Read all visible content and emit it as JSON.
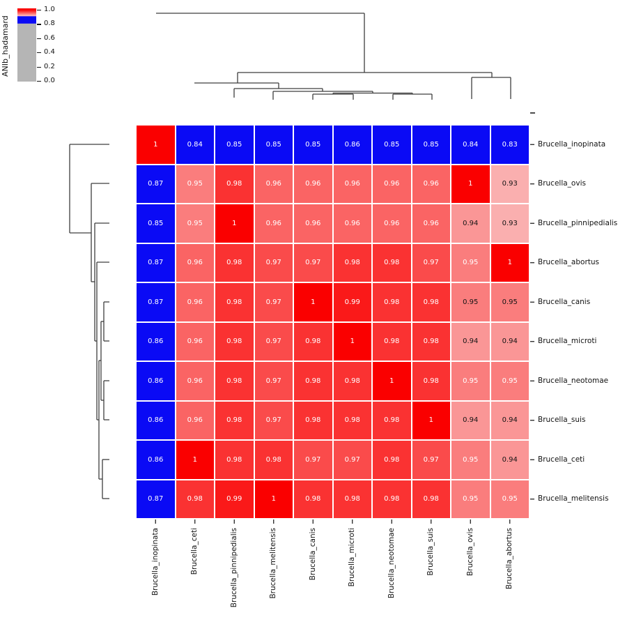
{
  "colorbar": {
    "label": "ANIb_hadamard",
    "tick_labels": [
      "1.0",
      "0.8",
      "0.6",
      "0.4",
      "0.2",
      "0.0"
    ],
    "colors": {
      "red": "#fa0000",
      "pink": "#ffc2c2",
      "blue": "#0a0af5",
      "gray": "#b5b5b5"
    }
  },
  "chart_data": {
    "type": "heatmap",
    "title": "",
    "colorbar_label": "ANIb_hadamard",
    "colorbar_ticks": [
      1.0,
      0.8,
      0.6,
      0.4,
      0.2,
      0.0
    ],
    "colormap": "0.0-0.8 gray, 0.8-0.9 blue, 0.9-1.0 white-to-red; row/col dendrograms clustered",
    "row_labels": [
      "Brucella_inopinata",
      "Brucella_ovis",
      "Brucella_pinnipedialis",
      "Brucella_abortus",
      "Brucella_canis",
      "Brucella_microti",
      "Brucella_neotomae",
      "Brucella_suis",
      "Brucella_ceti",
      "Brucella_melitensis"
    ],
    "col_labels": [
      "Brucella_inopinata",
      "Brucella_ceti",
      "Brucella_pinnipedialis",
      "Brucella_melitensis",
      "Brucella_canis",
      "Brucella_microti",
      "Brucella_neotomae",
      "Brucella_suis",
      "Brucella_ovis",
      "Brucella_abortus"
    ],
    "values": [
      [
        1,
        0.84,
        0.85,
        0.85,
        0.85,
        0.86,
        0.85,
        0.85,
        0.84,
        0.83
      ],
      [
        0.87,
        0.95,
        0.98,
        0.96,
        0.96,
        0.96,
        0.96,
        0.96,
        1,
        0.93
      ],
      [
        0.85,
        0.95,
        1,
        0.96,
        0.96,
        0.96,
        0.96,
        0.96,
        0.94,
        0.93
      ],
      [
        0.87,
        0.96,
        0.98,
        0.97,
        0.97,
        0.98,
        0.98,
        0.97,
        0.95,
        1
      ],
      [
        0.87,
        0.96,
        0.98,
        0.97,
        1,
        0.99,
        0.98,
        0.98,
        0.95,
        0.95
      ],
      [
        0.86,
        0.96,
        0.98,
        0.97,
        0.98,
        1,
        0.98,
        0.98,
        0.94,
        0.94
      ],
      [
        0.86,
        0.96,
        0.98,
        0.97,
        0.98,
        0.98,
        1,
        0.98,
        0.95,
        0.95
      ],
      [
        0.86,
        0.96,
        0.98,
        0.97,
        0.98,
        0.98,
        0.98,
        1,
        0.94,
        0.94
      ],
      [
        0.86,
        1,
        0.98,
        0.98,
        0.97,
        0.97,
        0.98,
        0.97,
        0.95,
        0.94
      ],
      [
        0.87,
        0.98,
        0.99,
        1,
        0.98,
        0.98,
        0.98,
        0.98,
        0.95,
        0.95
      ]
    ],
    "dark_text_cells": [
      [
        1,
        9
      ],
      [
        2,
        8
      ],
      [
        2,
        9
      ],
      [
        4,
        8
      ],
      [
        4,
        9
      ],
      [
        5,
        8
      ],
      [
        5,
        9
      ],
      [
        7,
        8
      ],
      [
        7,
        9
      ],
      [
        8,
        9
      ]
    ],
    "cell_colors": {
      "blue": "#0a0af5",
      "red_max": "#fa0000"
    }
  },
  "dendrograms": {
    "line_color": "#3d3d3d",
    "top_segments": [
      [
        224,
        19,
        523,
        19
      ],
      [
        523,
        19,
        523,
        104
      ],
      [
        341,
        104,
        706,
        104
      ],
      [
        341,
        104,
        341,
        119
      ],
      [
        706,
        104,
        706,
        111
      ],
      [
        677,
        111,
        733,
        111
      ],
      [
        677,
        111,
        677,
        142
      ],
      [
        733,
        111,
        733,
        142
      ],
      [
        279,
        119,
        400,
        119
      ],
      [
        400,
        119,
        400,
        127
      ],
      [
        336,
        127,
        463,
        127
      ],
      [
        336,
        127,
        336,
        140
      ],
      [
        463,
        127,
        463,
        131
      ],
      [
        392,
        131,
        535,
        131
      ],
      [
        392,
        131,
        392,
        143
      ],
      [
        535,
        131,
        535,
        133.5
      ],
      [
        478,
        133.5,
        592,
        133.5
      ],
      [
        478,
        133.5,
        478,
        135
      ],
      [
        592,
        133.5,
        592,
        135
      ],
      [
        449,
        135,
        507,
        135
      ],
      [
        449,
        135,
        449,
        143
      ],
      [
        507,
        135,
        507,
        143
      ],
      [
        564,
        135,
        620,
        135
      ],
      [
        564,
        135,
        564,
        143
      ],
      [
        620,
        135,
        620,
        143
      ]
    ],
    "left_segments": [
      [
        100,
        207,
        100,
        334
      ],
      [
        100,
        207,
        157,
        207
      ],
      [
        100,
        334,
        131,
        334
      ],
      [
        131,
        263,
        131,
        404
      ],
      [
        131,
        263,
        157,
        263
      ],
      [
        131,
        404,
        136,
        404
      ],
      [
        136,
        320,
        136,
        489
      ],
      [
        136,
        320,
        157,
        320
      ],
      [
        136,
        489,
        139,
        489
      ],
      [
        139,
        376,
        139,
        602
      ],
      [
        139,
        376,
        157,
        376
      ],
      [
        139,
        602,
        142,
        602
      ],
      [
        142,
        517,
        142,
        687
      ],
      [
        142,
        517,
        145,
        517
      ],
      [
        142,
        687,
        147,
        687
      ],
      [
        145,
        461,
        145,
        574
      ],
      [
        145,
        461,
        149,
        461
      ],
      [
        145,
        574,
        149,
        574
      ],
      [
        149,
        433,
        149,
        489
      ],
      [
        149,
        433,
        157,
        433
      ],
      [
        149,
        489,
        157,
        489
      ],
      [
        149,
        546,
        149,
        602
      ],
      [
        149,
        546,
        157,
        546
      ],
      [
        149,
        602,
        157,
        602
      ],
      [
        147,
        659,
        147,
        715
      ],
      [
        147,
        659,
        157,
        659
      ],
      [
        147,
        715,
        157,
        715
      ]
    ],
    "extra_axis_tick": [
      761,
      162,
      768,
      162
    ]
  }
}
